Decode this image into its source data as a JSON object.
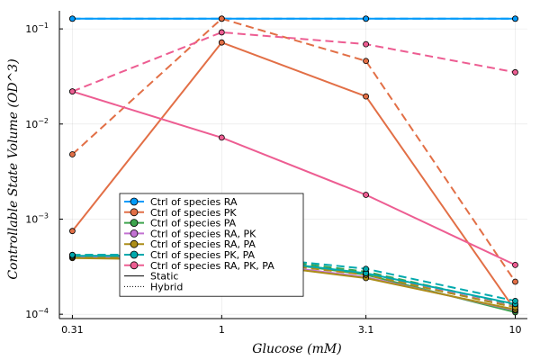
{
  "chart_data": {
    "type": "line",
    "title": "",
    "xlabel": "Glucose (mM)",
    "ylabel": "Controllable State Volume (OD^3)",
    "x_scale": "log",
    "y_scale": "log",
    "x": [
      0.31,
      1,
      3.1,
      10
    ],
    "x_tick_labels": [
      "0.31",
      "1",
      "3.1",
      "10"
    ],
    "xlim": [
      0.28,
      11
    ],
    "ylim": [
      9e-05,
      0.155
    ],
    "y_ticks": [
      {
        "value": 0.0001,
        "base": "10",
        "exp": "−4"
      },
      {
        "value": 0.001,
        "base": "10",
        "exp": "−3"
      },
      {
        "value": 0.01,
        "base": "10",
        "exp": "−2"
      },
      {
        "value": 0.1,
        "base": "10",
        "exp": "−1"
      }
    ],
    "grid": true,
    "legend_position": "bottom-center",
    "series": [
      {
        "name": "Ctrl of species RA",
        "color": "#009AFA",
        "mode": "static",
        "values": [
          0.128,
          0.128,
          0.128,
          0.128
        ]
      },
      {
        "name": "Ctrl of species RA",
        "color": "#009AFA",
        "mode": "hybrid",
        "values": [
          0.128,
          0.128,
          0.128,
          0.128
        ]
      },
      {
        "name": "Ctrl of species PK",
        "color": "#E26F46",
        "mode": "static",
        "values": [
          0.00075,
          0.072,
          0.0195,
          0.00011
        ]
      },
      {
        "name": "Ctrl of species PK",
        "color": "#E26F46",
        "mode": "hybrid",
        "values": [
          0.0048,
          0.128,
          0.046,
          0.00022
        ]
      },
      {
        "name": "Ctrl of species PA",
        "color": "#3DA44D",
        "mode": "static",
        "values": [
          0.00041,
          0.00042,
          0.00026,
          0.000105
        ]
      },
      {
        "name": "Ctrl of species PA",
        "color": "#3DA44D",
        "mode": "hybrid",
        "values": [
          0.00042,
          0.00043,
          0.00028,
          0.000125
        ]
      },
      {
        "name": "Ctrl of species RA, PK",
        "color": "#C271D2",
        "mode": "static",
        "values": [
          0.0004,
          0.00038,
          0.000245,
          0.00011
        ]
      },
      {
        "name": "Ctrl of species RA, PK",
        "color": "#C271D2",
        "mode": "hybrid",
        "values": [
          0.00041,
          0.0004,
          0.000265,
          0.00012
        ]
      },
      {
        "name": "Ctrl of species RA, PA",
        "color": "#AC8D18",
        "mode": "static",
        "values": [
          0.00039,
          0.00037,
          0.00024,
          0.000112
        ]
      },
      {
        "name": "Ctrl of species RA, PA",
        "color": "#AC8D18",
        "mode": "hybrid",
        "values": [
          0.0004,
          0.00039,
          0.00026,
          0.000118
        ]
      },
      {
        "name": "Ctrl of species PK, PA",
        "color": "#00A9AD",
        "mode": "static",
        "values": [
          0.00041,
          0.00041,
          0.00027,
          0.000128
        ]
      },
      {
        "name": "Ctrl of species PK, PA",
        "color": "#00A9AD",
        "mode": "hybrid",
        "values": [
          0.00042,
          0.00043,
          0.0003,
          0.000138
        ]
      },
      {
        "name": "Ctrl of species RA, PK, PA",
        "color": "#ED5D92",
        "mode": "static",
        "values": [
          0.022,
          0.0072,
          0.0018,
          0.00033
        ]
      },
      {
        "name": "Ctrl of species RA, PK, PA",
        "color": "#ED5D92",
        "mode": "hybrid",
        "values": [
          0.022,
          0.092,
          0.069,
          0.035
        ]
      }
    ],
    "legend": {
      "entries": [
        {
          "label": "Ctrl of species RA",
          "color": "#009AFA",
          "kind": "marker"
        },
        {
          "label": "Ctrl of species PK",
          "color": "#E26F46",
          "kind": "marker"
        },
        {
          "label": "Ctrl of species PA",
          "color": "#3DA44D",
          "kind": "marker"
        },
        {
          "label": "Ctrl of species RA, PK",
          "color": "#C271D2",
          "kind": "marker"
        },
        {
          "label": "Ctrl of species RA, PA",
          "color": "#AC8D18",
          "kind": "marker"
        },
        {
          "label": "Ctrl of species PK, PA",
          "color": "#00A9AD",
          "kind": "marker"
        },
        {
          "label": "Ctrl of species RA, PK, PA",
          "color": "#ED5D92",
          "kind": "marker"
        },
        {
          "label": "Static",
          "color": "#000000",
          "kind": "solid"
        },
        {
          "label": "Hybrid",
          "color": "#000000",
          "kind": "dotted"
        }
      ]
    }
  }
}
